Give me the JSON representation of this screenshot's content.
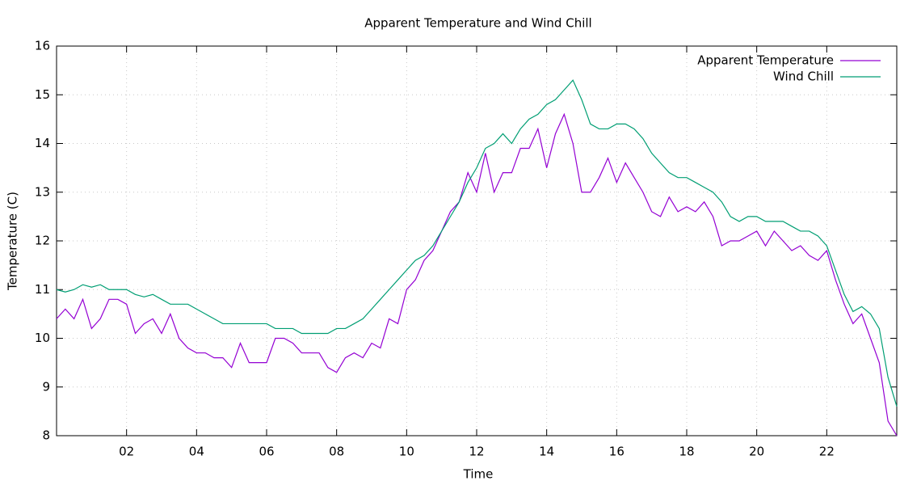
{
  "chart_data": {
    "type": "line",
    "title": "Apparent Temperature and Wind Chill",
    "xlabel": "Time",
    "ylabel": "Temperature (C)",
    "x": [
      0,
      0.25,
      0.5,
      0.75,
      1,
      1.25,
      1.5,
      1.75,
      2,
      2.25,
      2.5,
      2.75,
      3,
      3.25,
      3.5,
      3.75,
      4,
      4.25,
      4.5,
      4.75,
      5,
      5.25,
      5.5,
      5.75,
      6,
      6.25,
      6.5,
      6.75,
      7,
      7.25,
      7.5,
      7.75,
      8,
      8.25,
      8.5,
      8.75,
      9,
      9.25,
      9.5,
      9.75,
      10,
      10.25,
      10.5,
      10.75,
      11,
      11.25,
      11.5,
      11.75,
      12,
      12.25,
      12.5,
      12.75,
      13,
      13.25,
      13.5,
      13.75,
      14,
      14.25,
      14.5,
      14.75,
      15,
      15.25,
      15.5,
      15.75,
      16,
      16.25,
      16.5,
      16.75,
      17,
      17.25,
      17.5,
      17.75,
      18,
      18.25,
      18.5,
      18.75,
      19,
      19.25,
      19.5,
      19.75,
      20,
      20.25,
      20.5,
      20.75,
      21,
      21.25,
      21.5,
      21.75,
      22,
      22.25,
      22.5,
      22.75,
      23,
      23.25,
      23.5,
      23.75,
      24
    ],
    "series": [
      {
        "name": "Apparent Temperature",
        "color": "#9400d3",
        "values": [
          10.4,
          10.6,
          10.4,
          10.8,
          10.2,
          10.4,
          10.8,
          10.8,
          10.7,
          10.1,
          10.3,
          10.4,
          10.1,
          10.5,
          10.0,
          9.8,
          9.7,
          9.7,
          9.6,
          9.6,
          9.4,
          9.9,
          9.5,
          9.5,
          9.5,
          10.0,
          10.0,
          9.9,
          9.7,
          9.7,
          9.7,
          9.4,
          9.3,
          9.6,
          9.7,
          9.6,
          9.9,
          9.8,
          10.4,
          10.3,
          11.0,
          11.2,
          11.6,
          11.8,
          12.2,
          12.6,
          12.8,
          13.4,
          13.0,
          13.8,
          13.0,
          13.4,
          13.4,
          13.9,
          13.9,
          14.3,
          13.5,
          14.2,
          14.6,
          14.0,
          13.0,
          13.0,
          13.3,
          13.7,
          13.2,
          13.6,
          13.3,
          13.0,
          12.6,
          12.5,
          12.9,
          12.6,
          12.7,
          12.6,
          12.8,
          12.5,
          11.9,
          12.0,
          12.0,
          12.1,
          12.2,
          11.9,
          12.2,
          12.0,
          11.8,
          11.9,
          11.7,
          11.6,
          11.8,
          11.2,
          10.7,
          10.3,
          10.5,
          10.0,
          9.5,
          8.3,
          8.0
        ]
      },
      {
        "name": "Wind Chill",
        "color": "#009e73",
        "values": [
          11.0,
          10.95,
          11.0,
          11.1,
          11.05,
          11.1,
          11.0,
          11.0,
          11.0,
          10.9,
          10.85,
          10.9,
          10.8,
          10.7,
          10.7,
          10.7,
          10.6,
          10.5,
          10.4,
          10.3,
          10.3,
          10.3,
          10.3,
          10.3,
          10.3,
          10.2,
          10.2,
          10.2,
          10.1,
          10.1,
          10.1,
          10.1,
          10.2,
          10.2,
          10.3,
          10.4,
          10.6,
          10.8,
          11.0,
          11.2,
          11.4,
          11.6,
          11.7,
          11.9,
          12.2,
          12.5,
          12.8,
          13.2,
          13.5,
          13.9,
          14.0,
          14.2,
          14.0,
          14.3,
          14.5,
          14.6,
          14.8,
          14.9,
          15.1,
          15.3,
          14.9,
          14.4,
          14.3,
          14.3,
          14.4,
          14.4,
          14.3,
          14.1,
          13.8,
          13.6,
          13.4,
          13.3,
          13.3,
          13.2,
          13.1,
          13.0,
          12.8,
          12.5,
          12.4,
          12.5,
          12.5,
          12.4,
          12.4,
          12.4,
          12.3,
          12.2,
          12.2,
          12.1,
          11.9,
          11.4,
          10.9,
          10.55,
          10.65,
          10.5,
          10.2,
          9.2,
          8.6
        ]
      }
    ],
    "xlim": [
      0,
      24
    ],
    "xticks": [
      {
        "value": 2,
        "label": "02"
      },
      {
        "value": 4,
        "label": "04"
      },
      {
        "value": 6,
        "label": "06"
      },
      {
        "value": 8,
        "label": "08"
      },
      {
        "value": 10,
        "label": "10"
      },
      {
        "value": 12,
        "label": "12"
      },
      {
        "value": 14,
        "label": "14"
      },
      {
        "value": 16,
        "label": "16"
      },
      {
        "value": 18,
        "label": "18"
      },
      {
        "value": 20,
        "label": "20"
      },
      {
        "value": 22,
        "label": "22"
      }
    ],
    "ylim": [
      8,
      16
    ],
    "yticks": [
      8,
      9,
      10,
      11,
      12,
      13,
      14,
      15,
      16
    ],
    "grid": true,
    "legend": "top-right"
  }
}
